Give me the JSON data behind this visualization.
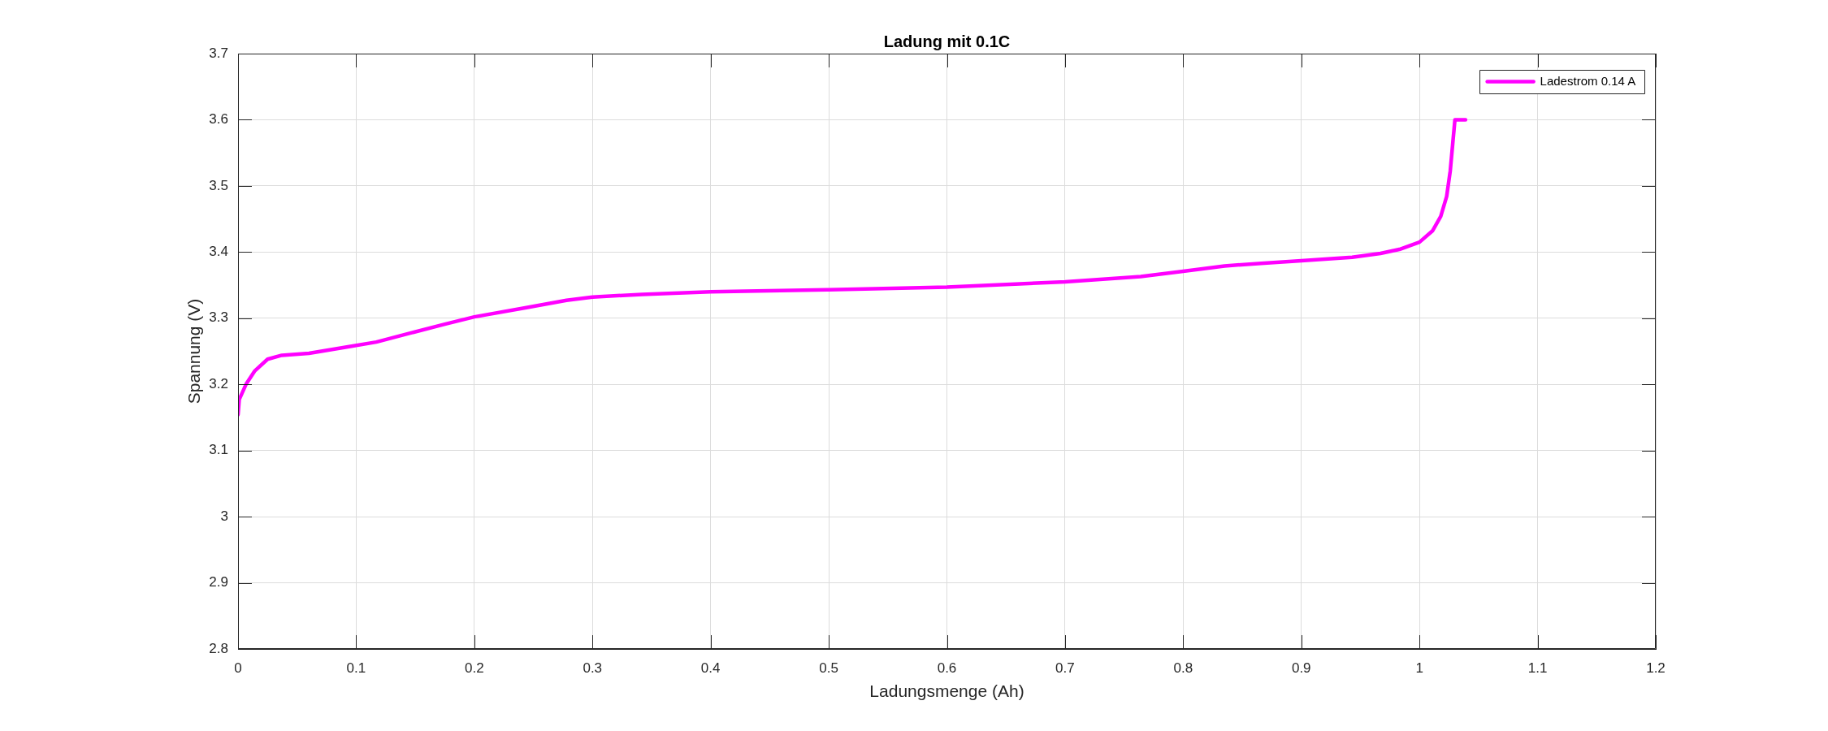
{
  "chart_data": {
    "type": "line",
    "title": "Ladung mit 0.1C",
    "xlabel": "Ladungsmenge (Ah)",
    "ylabel": "Spannung (V)",
    "xlim": [
      0,
      1.2
    ],
    "xticks": [
      0,
      0.1,
      0.2,
      0.3,
      0.4,
      0.5,
      0.6,
      0.7,
      0.8,
      0.9,
      1,
      1.1,
      1.2
    ],
    "ylim": [
      2.8,
      3.7
    ],
    "yticks": [
      2.8,
      2.9,
      3,
      3.1,
      3.2,
      3.3,
      3.4,
      3.5,
      3.6,
      3.7
    ],
    "grid": true,
    "legend": "top right",
    "series": [
      {
        "name": "Ladestrom 0.14 A",
        "color": "#ff00ff",
        "x": [
          0,
          0.001,
          0.007,
          0.014,
          0.025,
          0.037,
          0.06,
          0.094,
          0.117,
          0.147,
          0.175,
          0.2,
          0.244,
          0.278,
          0.3,
          0.342,
          0.4,
          0.5,
          0.6,
          0.7,
          0.764,
          0.8,
          0.835,
          0.866,
          0.9,
          0.943,
          0.967,
          0.983,
          1.0,
          1.011,
          1.018,
          1.023,
          1.026,
          1.028,
          1.03,
          1.039
        ],
        "values": [
          3.154,
          3.177,
          3.201,
          3.22,
          3.238,
          3.244,
          3.247,
          3.257,
          3.264,
          3.278,
          3.291,
          3.302,
          3.316,
          3.327,
          3.332,
          3.336,
          3.34,
          3.343,
          3.347,
          3.355,
          3.363,
          3.371,
          3.379,
          3.383,
          3.387,
          3.392,
          3.398,
          3.404,
          3.415,
          3.432,
          3.454,
          3.484,
          3.522,
          3.561,
          3.6,
          3.6
        ]
      }
    ]
  }
}
